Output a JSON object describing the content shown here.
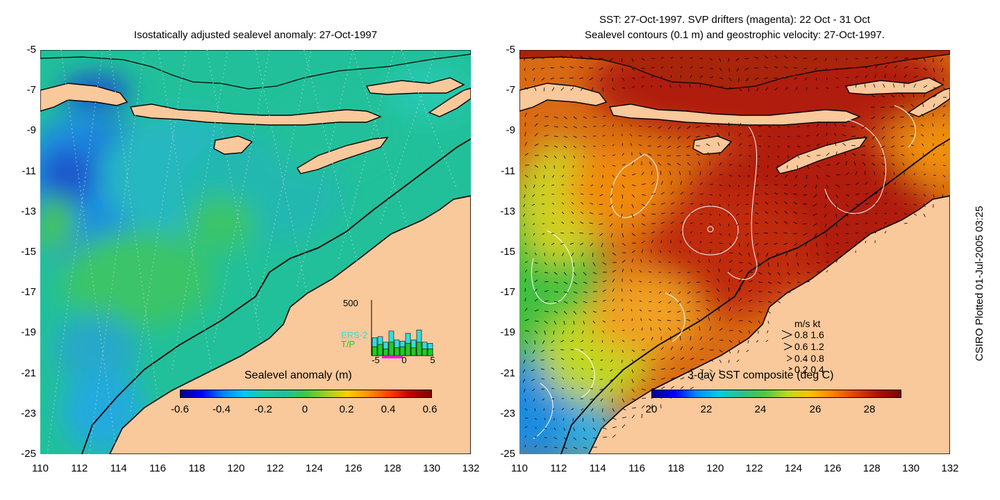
{
  "left_panel": {
    "title": "Isostatically adjusted sealevel anomaly: 27-Oct-1997",
    "colorbar": {
      "label": "Sealevel anomaly (m)",
      "ticks": [
        "-0.6",
        "-0.4",
        "-0.2",
        "0",
        "0.2",
        "0.4",
        "0.6"
      ],
      "range": [
        -0.6,
        0.6
      ]
    },
    "histogram": {
      "ymax_label": "500",
      "ymax": 500,
      "series": [
        {
          "name": "ERS-2",
          "color": "#33dddd"
        },
        {
          "name": "T/P",
          "color": "#22cc22"
        }
      ],
      "xticks": [
        "-5",
        "0",
        "5"
      ],
      "bins": [
        -5,
        -4,
        -3,
        -2,
        -1,
        0,
        1,
        2,
        3,
        4,
        5
      ],
      "ers2_counts": [
        160,
        170,
        120,
        220,
        140,
        130,
        200,
        140,
        230,
        120,
        110
      ],
      "tp_counts": [
        80,
        100,
        60,
        120,
        70,
        80,
        110,
        70,
        120,
        60,
        60
      ]
    }
  },
  "right_panel": {
    "title_line1": "SST: 27-Oct-1997. SVP drifters (magenta): 22 Oct - 31 Oct",
    "title_line2": "Sealevel contours (0.1 m) and geostrophic velocity: 27-Oct-1997.",
    "colorbar": {
      "label": "3-day SST composite (deg C)",
      "ticks": [
        "20",
        "22",
        "24",
        "26",
        "28"
      ],
      "range": [
        20,
        29.5
      ]
    },
    "velocity_legend": {
      "header": "m/s  kt",
      "rows": [
        "0.8  1.6",
        "0.6  1.2",
        "0.4  0.8",
        "0.2  0.4"
      ]
    }
  },
  "axes": {
    "lat_ticks": [
      "-5",
      "-7",
      "-9",
      "-11",
      "-13",
      "-15",
      "-17",
      "-19",
      "-21",
      "-23",
      "-25"
    ],
    "lon_ticks": [
      "110",
      "112",
      "114",
      "116",
      "118",
      "120",
      "122",
      "124",
      "126",
      "128",
      "130",
      "132"
    ],
    "lat_range": [
      -25,
      -5
    ],
    "lon_range": [
      110,
      132
    ]
  },
  "colors": {
    "land": "#f9c89b",
    "sea_base_left": "#21c09a",
    "sea_base_right": "#d86a14"
  },
  "credit": "CSIRO Plotted 01-Jul-2005 03:25"
}
